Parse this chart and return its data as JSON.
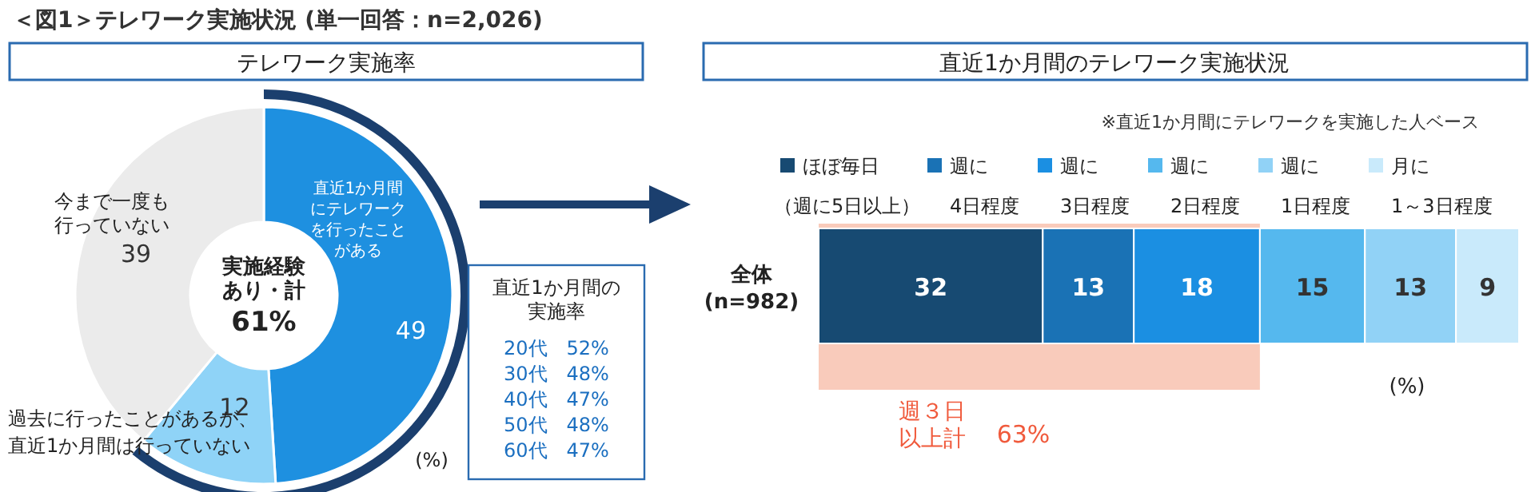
{
  "chart_data": [
    {
      "type": "donut",
      "title": "テレワーク実施率",
      "categories": [
        "直近1か月間にテレワークを行ったことがある",
        "過去に行ったことがあるが、直近1か月間は行っていない",
        "今まで一度も行っていない"
      ],
      "values": [
        49,
        12,
        39
      ],
      "colors": [
        "#1e90e0",
        "#8fd3f7",
        "#ebebeb"
      ],
      "data_labels": true,
      "annotations": [
        "＜図1＞テレワーク実施状況 (単一回答：n=2,026)",
        "実施経験あり・計",
        "61%",
        "(%)",
        "直近1か月間の実施率",
        "20代　52%",
        "30代　48%",
        "40代　47%",
        "50代　48%",
        "60代　47%"
      ]
    },
    {
      "type": "bar",
      "title": "直近1か月間のテレワーク実施状況",
      "orientation": "horizontal",
      "stacked": true,
      "categories": [
        "全体\n(n=982)"
      ],
      "xlim": [
        0,
        100
      ],
      "tick_labels": false,
      "data_labels": true,
      "legend": "top",
      "series": [
        {
          "name": "ほぼ毎日（週に5日以上）",
          "color": "#174a72",
          "values": [
            32
          ]
        },
        {
          "name": "週に4日程度",
          "color": "#1a72b5",
          "values": [
            13
          ]
        },
        {
          "name": "週に3日程度",
          "color": "#1b8fe2",
          "values": [
            18
          ]
        },
        {
          "name": "週に2日程度",
          "color": "#55b8ee",
          "values": [
            15
          ]
        },
        {
          "name": "週に1日程度",
          "color": "#91d2f6",
          "values": [
            13
          ]
        },
        {
          "name": "月に1～3日程度",
          "color": "#c9eafb",
          "values": [
            9
          ]
        }
      ],
      "bands": [
        {
          "axis": "x",
          "from": 0,
          "to": 63,
          "label": "週３日以上計",
          "color": "#f9cbbb"
        }
      ],
      "annotations": [
        "※直近1か月間にテレワークを実施した人ベース",
        "63%",
        "(%)"
      ]
    }
  ]
}
